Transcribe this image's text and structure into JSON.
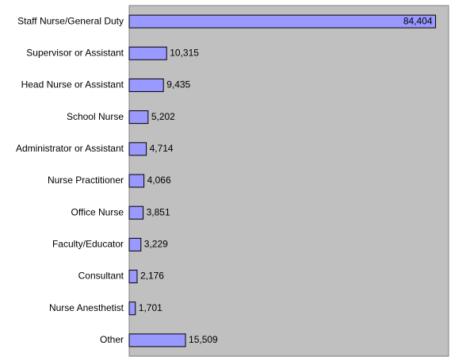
{
  "chart_data": {
    "type": "bar",
    "orientation": "horizontal",
    "categories": [
      "Staff Nurse/General Duty",
      "Supervisor or Assistant",
      "Head Nurse or Assistant",
      "School Nurse",
      "Administrator or Assistant",
      "Nurse Practitioner",
      "Office Nurse",
      "Faculty/Educator",
      "Consultant",
      "Nurse Anesthetist",
      "Other"
    ],
    "values": [
      84404,
      10315,
      9435,
      5202,
      4714,
      4066,
      3851,
      3229,
      2176,
      1701,
      15509
    ],
    "value_labels": [
      "84,404",
      "10,315",
      "9,435",
      "5,202",
      "4,714",
      "4,066",
      "3,851",
      "3,229",
      "2,176",
      "1,701",
      "15,509"
    ],
    "color": "#9999ff",
    "background": "#c0c0c0",
    "xlim": [
      0,
      88000
    ]
  }
}
